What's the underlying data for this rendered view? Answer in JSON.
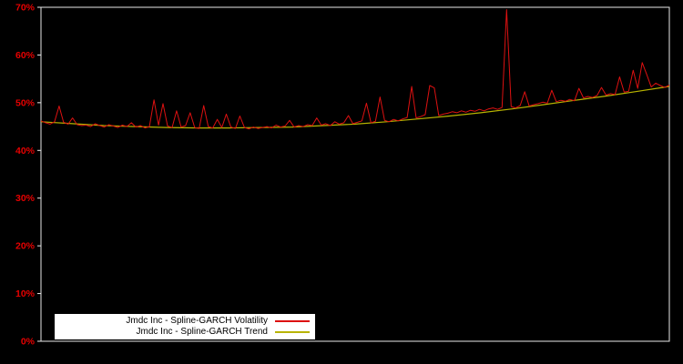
{
  "chart_data": {
    "type": "line",
    "title": "",
    "xlabel": "",
    "ylabel": "",
    "ylim": [
      0,
      70
    ],
    "y_ticks": [
      {
        "value": 0,
        "label": "0%"
      },
      {
        "value": 10,
        "label": "10%"
      },
      {
        "value": 20,
        "label": "20%"
      },
      {
        "value": 30,
        "label": "30%"
      },
      {
        "value": 40,
        "label": "40%"
      },
      {
        "value": 50,
        "label": "50%"
      },
      {
        "value": 60,
        "label": "60%"
      },
      {
        "value": 70,
        "label": "70%"
      }
    ],
    "grid": false,
    "legend_position": "bottom-left",
    "background_color": "#000000",
    "axis_color": "#e8e8e8",
    "tick_label_color": "#e60000",
    "series": [
      {
        "name": "Jmdc Inc - Spline-GARCH Volatility",
        "color": "#dd1111",
        "x_range": [
          0,
          1
        ],
        "values": [
          46.2,
          45.8,
          45.5,
          46.0,
          49.3,
          45.9,
          45.5,
          46.8,
          45.4,
          45.2,
          45.3,
          45.0,
          45.6,
          45.2,
          44.9,
          45.4,
          45.1,
          44.8,
          45.3,
          45.0,
          45.8,
          44.9,
          45.2,
          44.7,
          45.0,
          50.6,
          45.3,
          49.8,
          45.1,
          44.8,
          48.3,
          44.9,
          45.2,
          47.9,
          44.8,
          44.6,
          49.4,
          45.0,
          44.7,
          46.5,
          44.8,
          47.6,
          44.9,
          44.6,
          47.2,
          44.8,
          44.5,
          44.9,
          44.6,
          44.8,
          45.0,
          44.7,
          45.3,
          44.9,
          45.1,
          46.3,
          44.9,
          45.2,
          45.0,
          45.4,
          45.2,
          46.8,
          45.3,
          45.6,
          45.2,
          46.0,
          45.5,
          45.8,
          47.3,
          45.6,
          45.9,
          46.2,
          49.9,
          45.8,
          46.1,
          51.2,
          46.3,
          46.0,
          46.5,
          46.2,
          46.6,
          46.9,
          53.4,
          46.8,
          47.1,
          47.5,
          53.6,
          53.1,
          47.3,
          47.6,
          47.8,
          48.1,
          47.9,
          48.3,
          48.0,
          48.4,
          48.2,
          48.6,
          48.3,
          48.7,
          48.9,
          48.6,
          49.0,
          69.5,
          49.2,
          48.9,
          49.4,
          52.3,
          49.3,
          49.6,
          49.8,
          50.1,
          49.9,
          52.6,
          50.2,
          50.5,
          50.3,
          50.7,
          50.4,
          53.0,
          51.0,
          51.3,
          51.1,
          51.5,
          53.2,
          51.6,
          51.9,
          51.7,
          55.4,
          52.2,
          52.4,
          56.8,
          53.0,
          58.4,
          55.9,
          53.3,
          54.1,
          53.6,
          53.2,
          53.7
        ]
      },
      {
        "name": "Jmdc Inc - Spline-GARCH Trend",
        "color": "#b8b400",
        "x": [
          0,
          0.05,
          0.1,
          0.15,
          0.2,
          0.25,
          0.3,
          0.35,
          0.4,
          0.45,
          0.5,
          0.55,
          0.6,
          0.65,
          0.7,
          0.75,
          0.8,
          0.85,
          0.9,
          0.95,
          1.0
        ],
        "values": [
          46.0,
          45.6,
          45.2,
          45.0,
          44.8,
          44.7,
          44.7,
          44.8,
          44.9,
          45.2,
          45.5,
          46.0,
          46.6,
          47.2,
          47.9,
          48.7,
          49.6,
          50.5,
          51.4,
          52.4,
          53.4
        ]
      }
    ]
  }
}
